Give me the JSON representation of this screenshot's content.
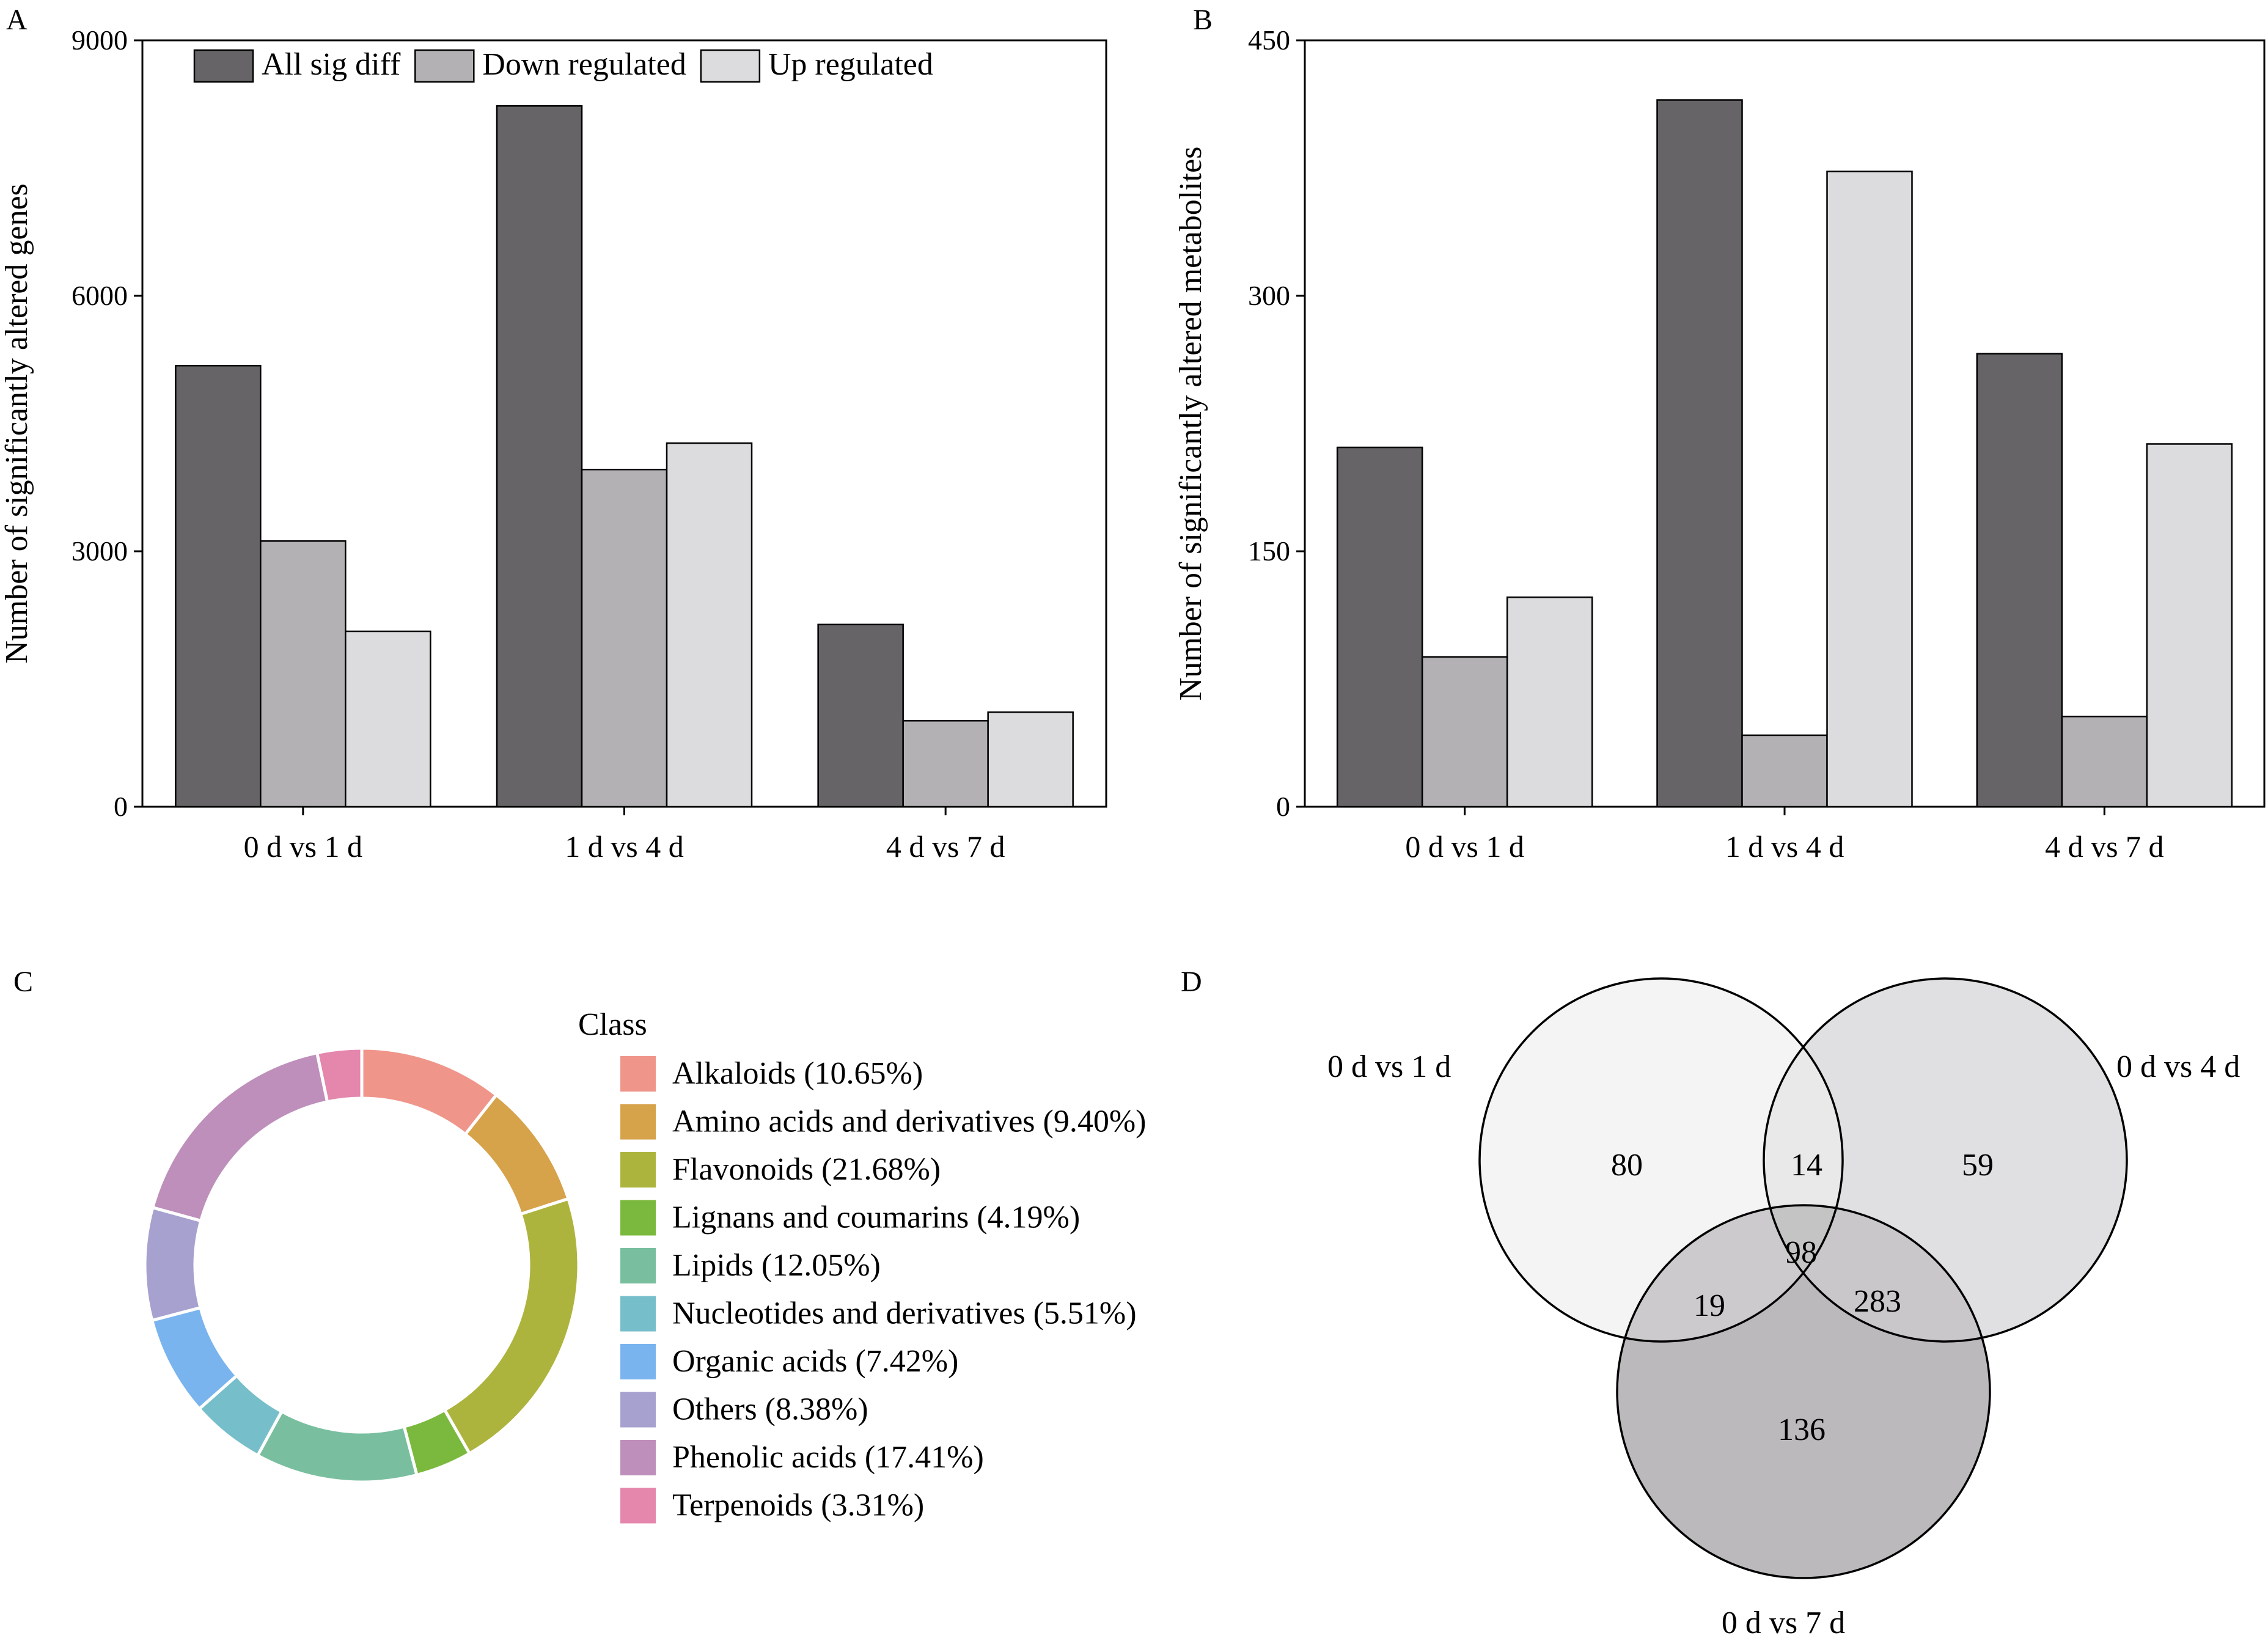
{
  "panels": {
    "a": {
      "label": "A"
    },
    "b": {
      "label": "B"
    },
    "c": {
      "label": "C"
    },
    "d": {
      "label": "D"
    }
  },
  "colors": {
    "all_sig_diff": "#666467",
    "down_regulated": "#b3b1b4",
    "up_regulated": "#dcdcde"
  },
  "chart_data": [
    {
      "type": "bar",
      "panel": "A",
      "title": "",
      "categories": [
        "0 d vs 1 d",
        "1 d vs 4 d",
        "4 d vs 7 d"
      ],
      "series": [
        {
          "name": "All sig diff",
          "values": [
            5180,
            8230,
            2140
          ]
        },
        {
          "name": "Down regulated",
          "values": [
            3120,
            3960,
            1010
          ]
        },
        {
          "name": "Up regulated",
          "values": [
            2060,
            4270,
            1110
          ]
        }
      ],
      "xlabel": "",
      "ylabel": "Number of significantly altered genes",
      "ylim": [
        0,
        9000
      ],
      "yticks": [
        "0",
        "3000",
        "6000",
        "9000"
      ],
      "grid": false,
      "legend": "top"
    },
    {
      "type": "bar",
      "panel": "B",
      "title": "",
      "categories": [
        "0 d vs 1 d",
        "1 d vs 4 d",
        "4 d vs 7 d"
      ],
      "series": [
        {
          "name": "All sig diff",
          "values": [
            211,
            415,
            266
          ]
        },
        {
          "name": "Down regulated",
          "values": [
            88,
            42,
            53
          ]
        },
        {
          "name": "Up regulated",
          "values": [
            123,
            373,
            213
          ]
        }
      ],
      "xlabel": "",
      "ylabel": "Number of significantly altered metabolites",
      "ylim": [
        0,
        450
      ],
      "yticks": [
        "0",
        "150",
        "300",
        "450"
      ],
      "grid": false,
      "legend": "none"
    },
    {
      "type": "pie",
      "panel": "C",
      "style": "donut",
      "legend_title": "Class",
      "legend": "right",
      "slices": [
        {
          "label": "Alkaloids",
          "value": 10.65,
          "display": "Alkaloids (10.65%)",
          "color": "#ef958a"
        },
        {
          "label": "Amino acids and derivatives",
          "value": 9.4,
          "display": "Amino acids and derivatives (9.40%)",
          "color": "#d6a24a"
        },
        {
          "label": "Flavonoids",
          "value": 21.68,
          "display": "Flavonoids (21.68%)",
          "color": "#adb43e"
        },
        {
          "label": "Lignans and coumarins",
          "value": 4.19,
          "display": "Lignans and coumarins (4.19%)",
          "color": "#7ab93d"
        },
        {
          "label": "Lipids",
          "value": 12.05,
          "display": "Lipids (12.05%)",
          "color": "#79bf9f"
        },
        {
          "label": "Nucleotides and derivatives",
          "value": 5.51,
          "display": "Nucleotides and derivatives (5.51%)",
          "color": "#76bfca"
        },
        {
          "label": "Organic acids",
          "value": 7.42,
          "display": "Organic acids (7.42%)",
          "color": "#7ab4ee"
        },
        {
          "label": "Others",
          "value": 8.38,
          "display": "Others (8.38%)",
          "color": "#a6a1cf"
        },
        {
          "label": "Phenolic acids",
          "value": 17.41,
          "display": "Phenolic acids (17.41%)",
          "color": "#be8fbb"
        },
        {
          "label": "Terpenoids",
          "value": 3.31,
          "display": "Terpenoids (3.31%)",
          "color": "#e586ad"
        }
      ]
    },
    {
      "type": "venn",
      "panel": "D",
      "sets": [
        {
          "name": "0 d vs 1 d",
          "color": "#f4f4f4"
        },
        {
          "name": "0 d vs 4 d",
          "color": "#e0e0e2"
        },
        {
          "name": "0 d vs 7 d",
          "color": "#bcb9bc"
        }
      ],
      "regions": {
        "only_1": "80",
        "only_2": "59",
        "only_3": "136",
        "r12": "14",
        "r13": "19",
        "r23": "283",
        "r123": "98"
      },
      "region_colors": {
        "r12": "#e8e9e8",
        "r13": "#cccacc",
        "r23": "#c9c7ca",
        "r123": "#c5c4c5"
      }
    }
  ]
}
